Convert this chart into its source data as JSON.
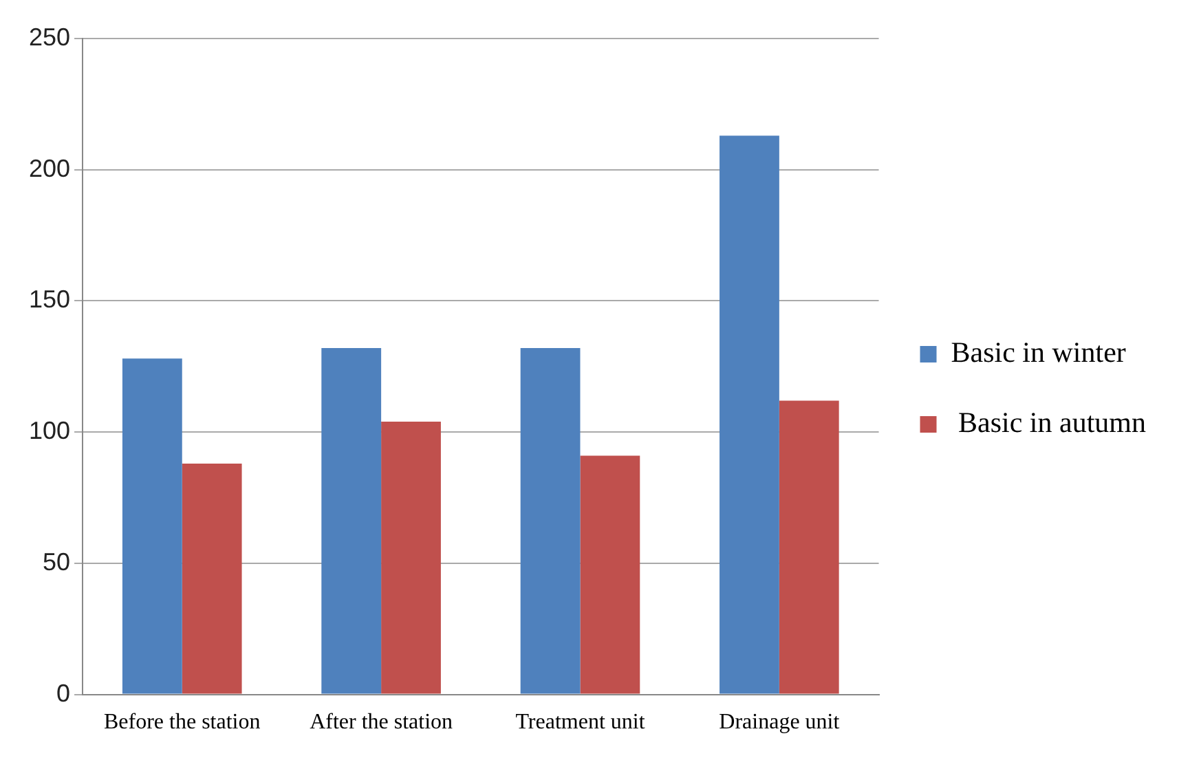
{
  "chart_data": {
    "type": "bar",
    "categories": [
      "Before the station",
      "After the station",
      "Treatment unit",
      "Drainage unit"
    ],
    "series": [
      {
        "name": "Basic in winter",
        "color": "#4f81bd",
        "values": [
          128,
          132,
          132,
          213
        ]
      },
      {
        "name": " Basic in autumn",
        "color": "#c0504d",
        "values": [
          88,
          104,
          91,
          112
        ]
      }
    ],
    "ylim": [
      0,
      250
    ],
    "yticks": [
      0,
      50,
      100,
      150,
      200,
      250
    ],
    "grid": "y",
    "legend": "right"
  }
}
